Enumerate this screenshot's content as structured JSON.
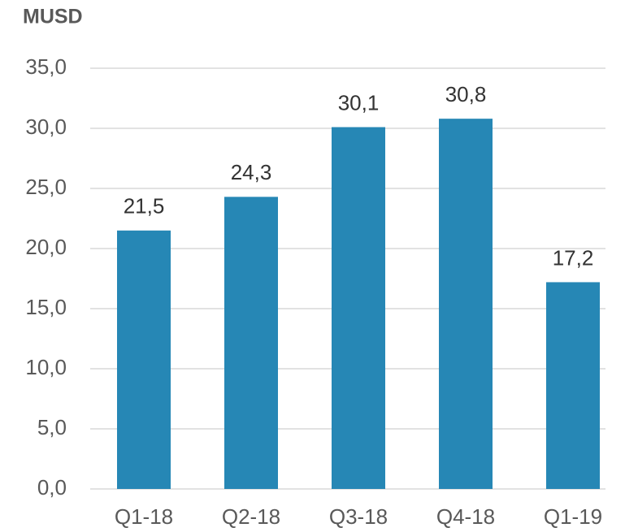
{
  "chart_data": {
    "type": "bar",
    "title": "MUSD",
    "categories": [
      "Q1-18",
      "Q2-18",
      "Q3-18",
      "Q4-18",
      "Q1-19"
    ],
    "values": [
      21.5,
      24.3,
      30.1,
      30.8,
      17.2
    ],
    "value_labels": [
      "21,5",
      "24,3",
      "30,1",
      "30,8",
      "17,2"
    ],
    "color": "#2687b5",
    "ylim": [
      0,
      35
    ],
    "yticks": [
      {
        "value": 0,
        "label": "0,0"
      },
      {
        "value": 5,
        "label": "5,0"
      },
      {
        "value": 10,
        "label": "10,0"
      },
      {
        "value": 15,
        "label": "15,0"
      },
      {
        "value": 20,
        "label": "20,0"
      },
      {
        "value": 25,
        "label": "25,0"
      },
      {
        "value": 30,
        "label": "30,0"
      },
      {
        "value": 35,
        "label": "35,0"
      }
    ],
    "grid": true
  }
}
